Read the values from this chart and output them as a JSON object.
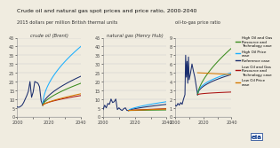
{
  "title": "Crude oil and natural gas spot prices and price ratio, 2000-2040",
  "subtitle": "2015 dollars per million British thermal units",
  "subtitle_right": "oil-to-gas price ratio",
  "panel1_label": "crude oil (Brent)",
  "panel2_label": "natural gas (Henry Hub)",
  "colors": {
    "high_oil_gas_res_tech": "#3a8c1e",
    "high_oil_price": "#1aafff",
    "reference": "#1b2e6e",
    "low_oil_gas_res_tech": "#aa1111",
    "low_oil_price": "#d47800"
  },
  "legend": [
    {
      "label": "High Oil and Gas\nResource and\nTechnology case",
      "color": "#3a8c1e"
    },
    {
      "label": "High Oil Price\ncase",
      "color": "#1aafff"
    },
    {
      "label": "Reference case",
      "color": "#1b2e6e"
    },
    {
      "label": "Low Oil and Gas\nResource and\nTechnology case",
      "color": "#aa1111"
    },
    {
      "label": "Low Oil Price\ncase",
      "color": "#d47800"
    }
  ],
  "background": "#f0ece0",
  "ylim_crude": [
    0,
    45
  ],
  "ylim_ng": [
    0,
    45
  ],
  "ylim_ratio": [
    0,
    9
  ],
  "yticks_crude": [
    0,
    5,
    10,
    15,
    20,
    25,
    30,
    35,
    40,
    45
  ],
  "yticks_ng": [
    0,
    5,
    10,
    15,
    20,
    25,
    30,
    35,
    40,
    45
  ],
  "yticks_ratio": [
    0,
    1,
    2,
    3,
    4,
    5,
    6,
    7,
    8,
    9
  ],
  "xticks": [
    2000,
    2010,
    2020,
    2030,
    2040
  ]
}
